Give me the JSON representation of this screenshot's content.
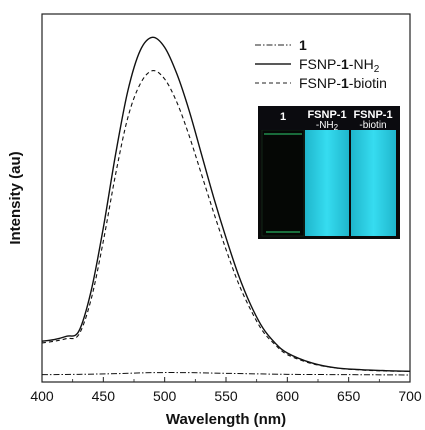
{
  "chart_data": {
    "type": "line",
    "xlabel": "Wavelength (nm)",
    "ylabel": "Intensity (au)",
    "xlim": [
      400,
      700
    ],
    "ylim": [
      0,
      100
    ],
    "xticks": [
      "400",
      "450",
      "500",
      "550",
      "600",
      "650",
      "700"
    ],
    "grid": false,
    "legend_position": "top-right",
    "series": [
      {
        "name_prefix": "1",
        "name_suffix": "",
        "style": "dash-dot",
        "x": [
          400,
          430,
          460,
          490,
          520,
          550,
          600,
          650,
          700
        ],
        "y": [
          1.0,
          1.1,
          1.3,
          1.6,
          1.6,
          1.4,
          1.1,
          1.0,
          0.9
        ]
      },
      {
        "name_prefix": "FSNP-",
        "name_bold": "1",
        "name_suffix": "-NH",
        "name_sub": "2",
        "style": "solid",
        "x": [
          400,
          410,
          420,
          430,
          440,
          450,
          460,
          470,
          480,
          490,
          500,
          510,
          520,
          530,
          540,
          550,
          560,
          570,
          580,
          590,
          600,
          620,
          640,
          660,
          680,
          700
        ],
        "y": [
          11.0,
          11.5,
          12.5,
          14.0,
          26.0,
          45.0,
          67.0,
          86.0,
          98.0,
          102.0,
          99.0,
          91.0,
          80.0,
          67.0,
          54.0,
          42.0,
          31.0,
          22.0,
          15.0,
          10.5,
          7.5,
          4.5,
          3.0,
          2.5,
          2.2,
          2.0
        ]
      },
      {
        "name_prefix": "FSNP-",
        "name_bold": "1",
        "name_suffix": "-biotin",
        "name_sub": "",
        "style": "dashed",
        "x": [
          400,
          410,
          420,
          430,
          440,
          450,
          460,
          470,
          480,
          490,
          500,
          510,
          520,
          530,
          540,
          550,
          560,
          570,
          580,
          590,
          600,
          620,
          640,
          660,
          680,
          700
        ],
        "y": [
          10.5,
          11.0,
          11.8,
          13.0,
          23.5,
          41.0,
          61.0,
          78.0,
          88.0,
          92.0,
          89.5,
          82.5,
          72.5,
          61.0,
          49.5,
          38.5,
          28.5,
          20.5,
          14.0,
          10.0,
          7.0,
          4.3,
          3.0,
          2.4,
          2.1,
          2.0
        ]
      }
    ]
  },
  "inset": {
    "vial_1": "1",
    "vial_2_line1_prefix": "FSNP-",
    "vial_2_line1_bold": "1",
    "vial_2_line2": "-NH",
    "vial_2_line2_sub": "2",
    "vial_3_line1_prefix": "FSNP-",
    "vial_3_line1_bold": "1",
    "vial_3_line2": "-biotin",
    "background_color": "#0a0a0a",
    "glow_color": "#29d0e6"
  }
}
